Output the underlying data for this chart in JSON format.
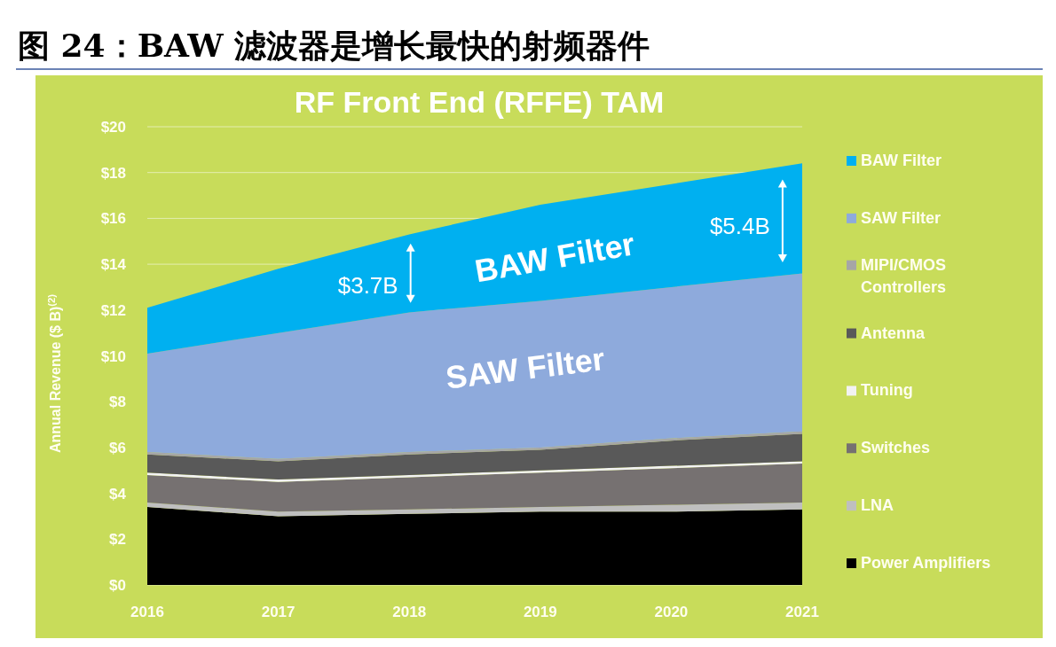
{
  "chart_data": {
    "type": "area",
    "stacked": true,
    "title": "图 24：BAW 滤波器是增长最快的射频器件",
    "subtitle": "RF Front End (RFFE) TAM",
    "ylabel": "Annual Revenue ($ B)$^{(2)}$",
    "x": [
      2016,
      2017,
      2018,
      2019,
      2020,
      2021
    ],
    "xlim": [
      2016,
      2021
    ],
    "xticks": [
      2016,
      2017,
      2018,
      2019,
      2020,
      2021
    ],
    "ylim": [
      0,
      20
    ],
    "yticks": [
      {
        "value": 0,
        "label": "$0"
      },
      {
        "value": 2,
        "label": "$2"
      },
      {
        "value": 4,
        "label": "$4"
      },
      {
        "value": 6,
        "label": "$6"
      },
      {
        "value": 8,
        "label": "$8"
      },
      {
        "value": 10,
        "label": "$10"
      },
      {
        "value": 12,
        "label": "$12"
      },
      {
        "value": 14,
        "label": "$14"
      },
      {
        "value": 16,
        "label": "$16"
      },
      {
        "value": 18,
        "label": "$18"
      },
      {
        "value": 20,
        "label": "$20"
      }
    ],
    "grid": "y",
    "legend": "right",
    "series": [
      {
        "name": "Power Amplifiers",
        "color": "#000000",
        "values": [
          3.4,
          3.0,
          3.1,
          3.2,
          3.2,
          3.3
        ]
      },
      {
        "name": "LNA",
        "color": "#bfbfbf",
        "values": [
          0.2,
          0.2,
          0.2,
          0.2,
          0.3,
          0.3
        ]
      },
      {
        "name": "Switches",
        "color": "#767171",
        "values": [
          1.2,
          1.3,
          1.4,
          1.5,
          1.6,
          1.7
        ]
      },
      {
        "name": "Tuning",
        "color": "#f2f2f2",
        "values": [
          0.1,
          0.1,
          0.1,
          0.1,
          0.1,
          0.1
        ]
      },
      {
        "name": "Antenna",
        "color": "#595959",
        "values": [
          0.8,
          0.8,
          0.9,
          0.9,
          1.1,
          1.2
        ]
      },
      {
        "name": "MIPI/CMOS Controllers",
        "color": "#a6a6a6",
        "values": [
          0.1,
          0.1,
          0.1,
          0.1,
          0.1,
          0.1
        ]
      },
      {
        "name": "SAW Filter",
        "color": "#8eaadc",
        "values": [
          4.3,
          5.5,
          6.1,
          6.4,
          6.6,
          6.9
        ]
      },
      {
        "name": "BAW Filter",
        "color": "#00b0f0",
        "values": [
          2.0,
          2.8,
          3.4,
          4.2,
          4.5,
          4.8
        ]
      }
    ],
    "annotations": [
      "BAW Filter",
      "SAW Filter",
      "$3.7B",
      "$5.4B"
    ]
  }
}
